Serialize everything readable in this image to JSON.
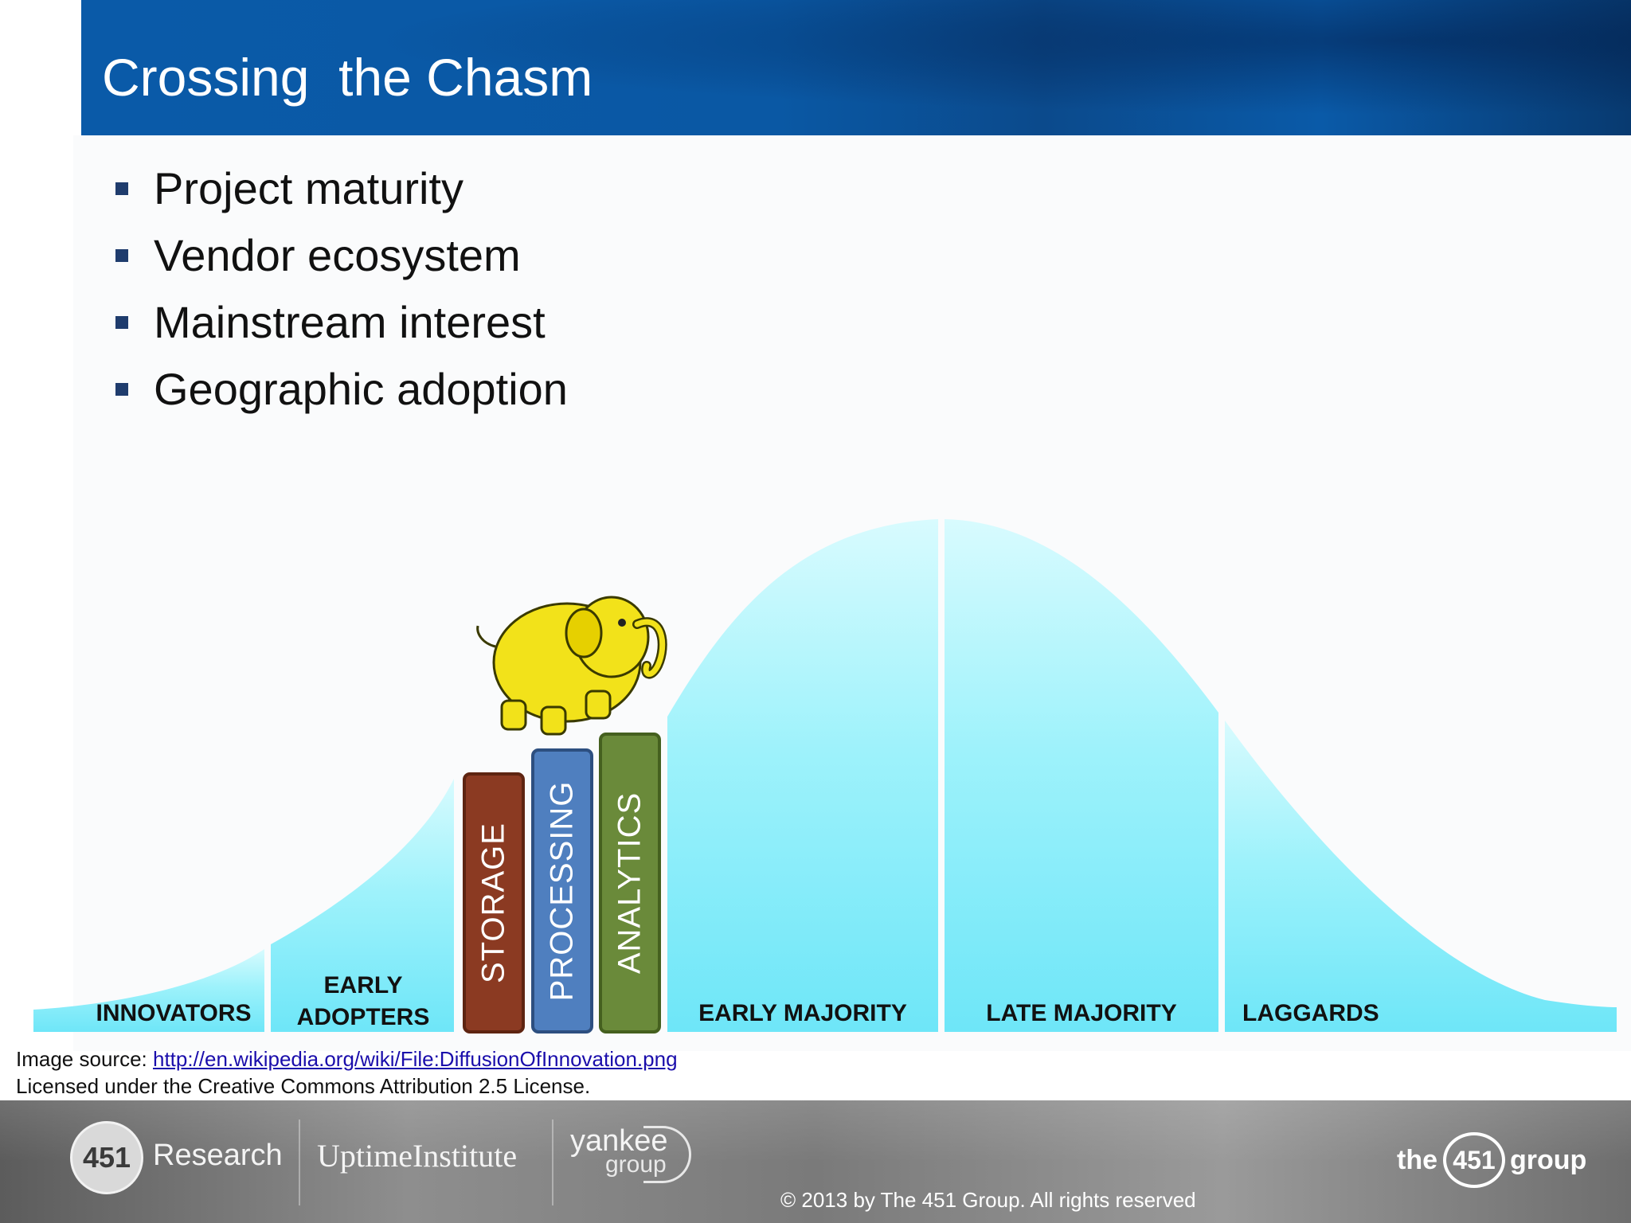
{
  "slide": {
    "title": "Crossing  the Chasm",
    "bullets": [
      "Project maturity",
      "Vendor ecosystem",
      "Mainstream interest",
      "Geographic adoption"
    ]
  },
  "diagram": {
    "segments": [
      {
        "label": "INNOVATORS"
      },
      {
        "label": "EARLY\nADOPTERS"
      },
      {
        "label": "EARLY MAJORITY"
      },
      {
        "label": "LATE MAJORITY"
      },
      {
        "label": "LAGGARDS"
      }
    ],
    "pillars": [
      {
        "label": "STORAGE",
        "color": "#8b3a22"
      },
      {
        "label": "PROCESSING",
        "color": "#4f7fbf"
      },
      {
        "label": "ANALYTICS",
        "color": "#6a8a3a"
      }
    ],
    "curve_color": "#6ee6f8",
    "mascot_color": "#f2e21a"
  },
  "source": {
    "prefix": "Image source: ",
    "link": "http://en.wikipedia.org/wiki/File:DiffusionOfInnovation.png",
    "license": "Licensed under the Creative Commons Attribution 2.5 License."
  },
  "footer": {
    "logo_451": "451",
    "logo_research": "Research",
    "logo_uptime": "UptimeInstitute",
    "logo_yankee": "yankee",
    "logo_yankee_group": "group",
    "logo_the": "the",
    "logo_the451": "451",
    "logo_group": "group",
    "copyright": "© 2013 by The 451 Group. All rights reserved"
  }
}
